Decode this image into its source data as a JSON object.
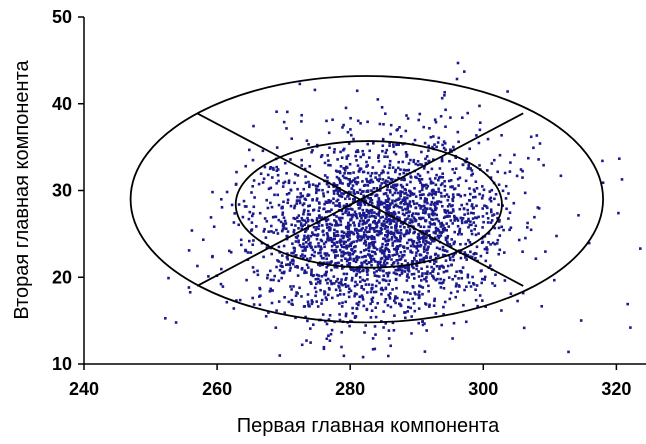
{
  "chart_data": {
    "type": "scatter",
    "title": "",
    "xlabel": "Первая главная компонента",
    "ylabel": "Вторая главная компонента",
    "xlim": [
      240,
      324
    ],
    "ylim": [
      10,
      50
    ],
    "xticks": [
      240,
      260,
      280,
      300,
      320
    ],
    "yticks": [
      10,
      20,
      30,
      40,
      50
    ],
    "xtick_labels": [
      "240",
      "260",
      "280",
      "300",
      "320"
    ],
    "ytick_labels": [
      "10",
      "20",
      "30",
      "40",
      "50"
    ],
    "grid": false,
    "legend": "none",
    "marker_color": "#1a1a8c",
    "line_color": "#000000",
    "cloud": {
      "count": 2600,
      "center": [
        284.5,
        25.5
      ],
      "spread": [
        9.5,
        5.2
      ],
      "correlation": 0.08
    },
    "outliers": [
      {
        "x": 296.2,
        "y": 44.7
      },
      {
        "x": 274.7,
        "y": 41.6
      },
      {
        "x": 265.4,
        "y": 33.5
      },
      {
        "x": 252.7,
        "y": 19.9
      },
      {
        "x": 255.8,
        "y": 23.1
      },
      {
        "x": 312.8,
        "y": 11.4
      },
      {
        "x": 322.1,
        "y": 14.2
      },
      {
        "x": 320.3,
        "y": 27.4
      },
      {
        "x": 321.7,
        "y": 16.9
      },
      {
        "x": 323.6,
        "y": 23.3
      },
      {
        "x": 318.0,
        "y": 30.9
      }
    ],
    "ellipses": [
      {
        "name": "outer",
        "center": [
          282.5,
          29.0
        ],
        "radius_x": 35.5,
        "radius_y": 14.2
      },
      {
        "name": "inner",
        "center": [
          282.8,
          28.4
        ],
        "radius_x": 20.0,
        "radius_y": 7.3
      }
    ],
    "lines": [
      {
        "from": [
          257.0,
          38.9
        ],
        "to": [
          306.0,
          19.0
        ]
      },
      {
        "from": [
          257.0,
          19.0
        ],
        "to": [
          306.0,
          38.9
        ]
      }
    ]
  }
}
